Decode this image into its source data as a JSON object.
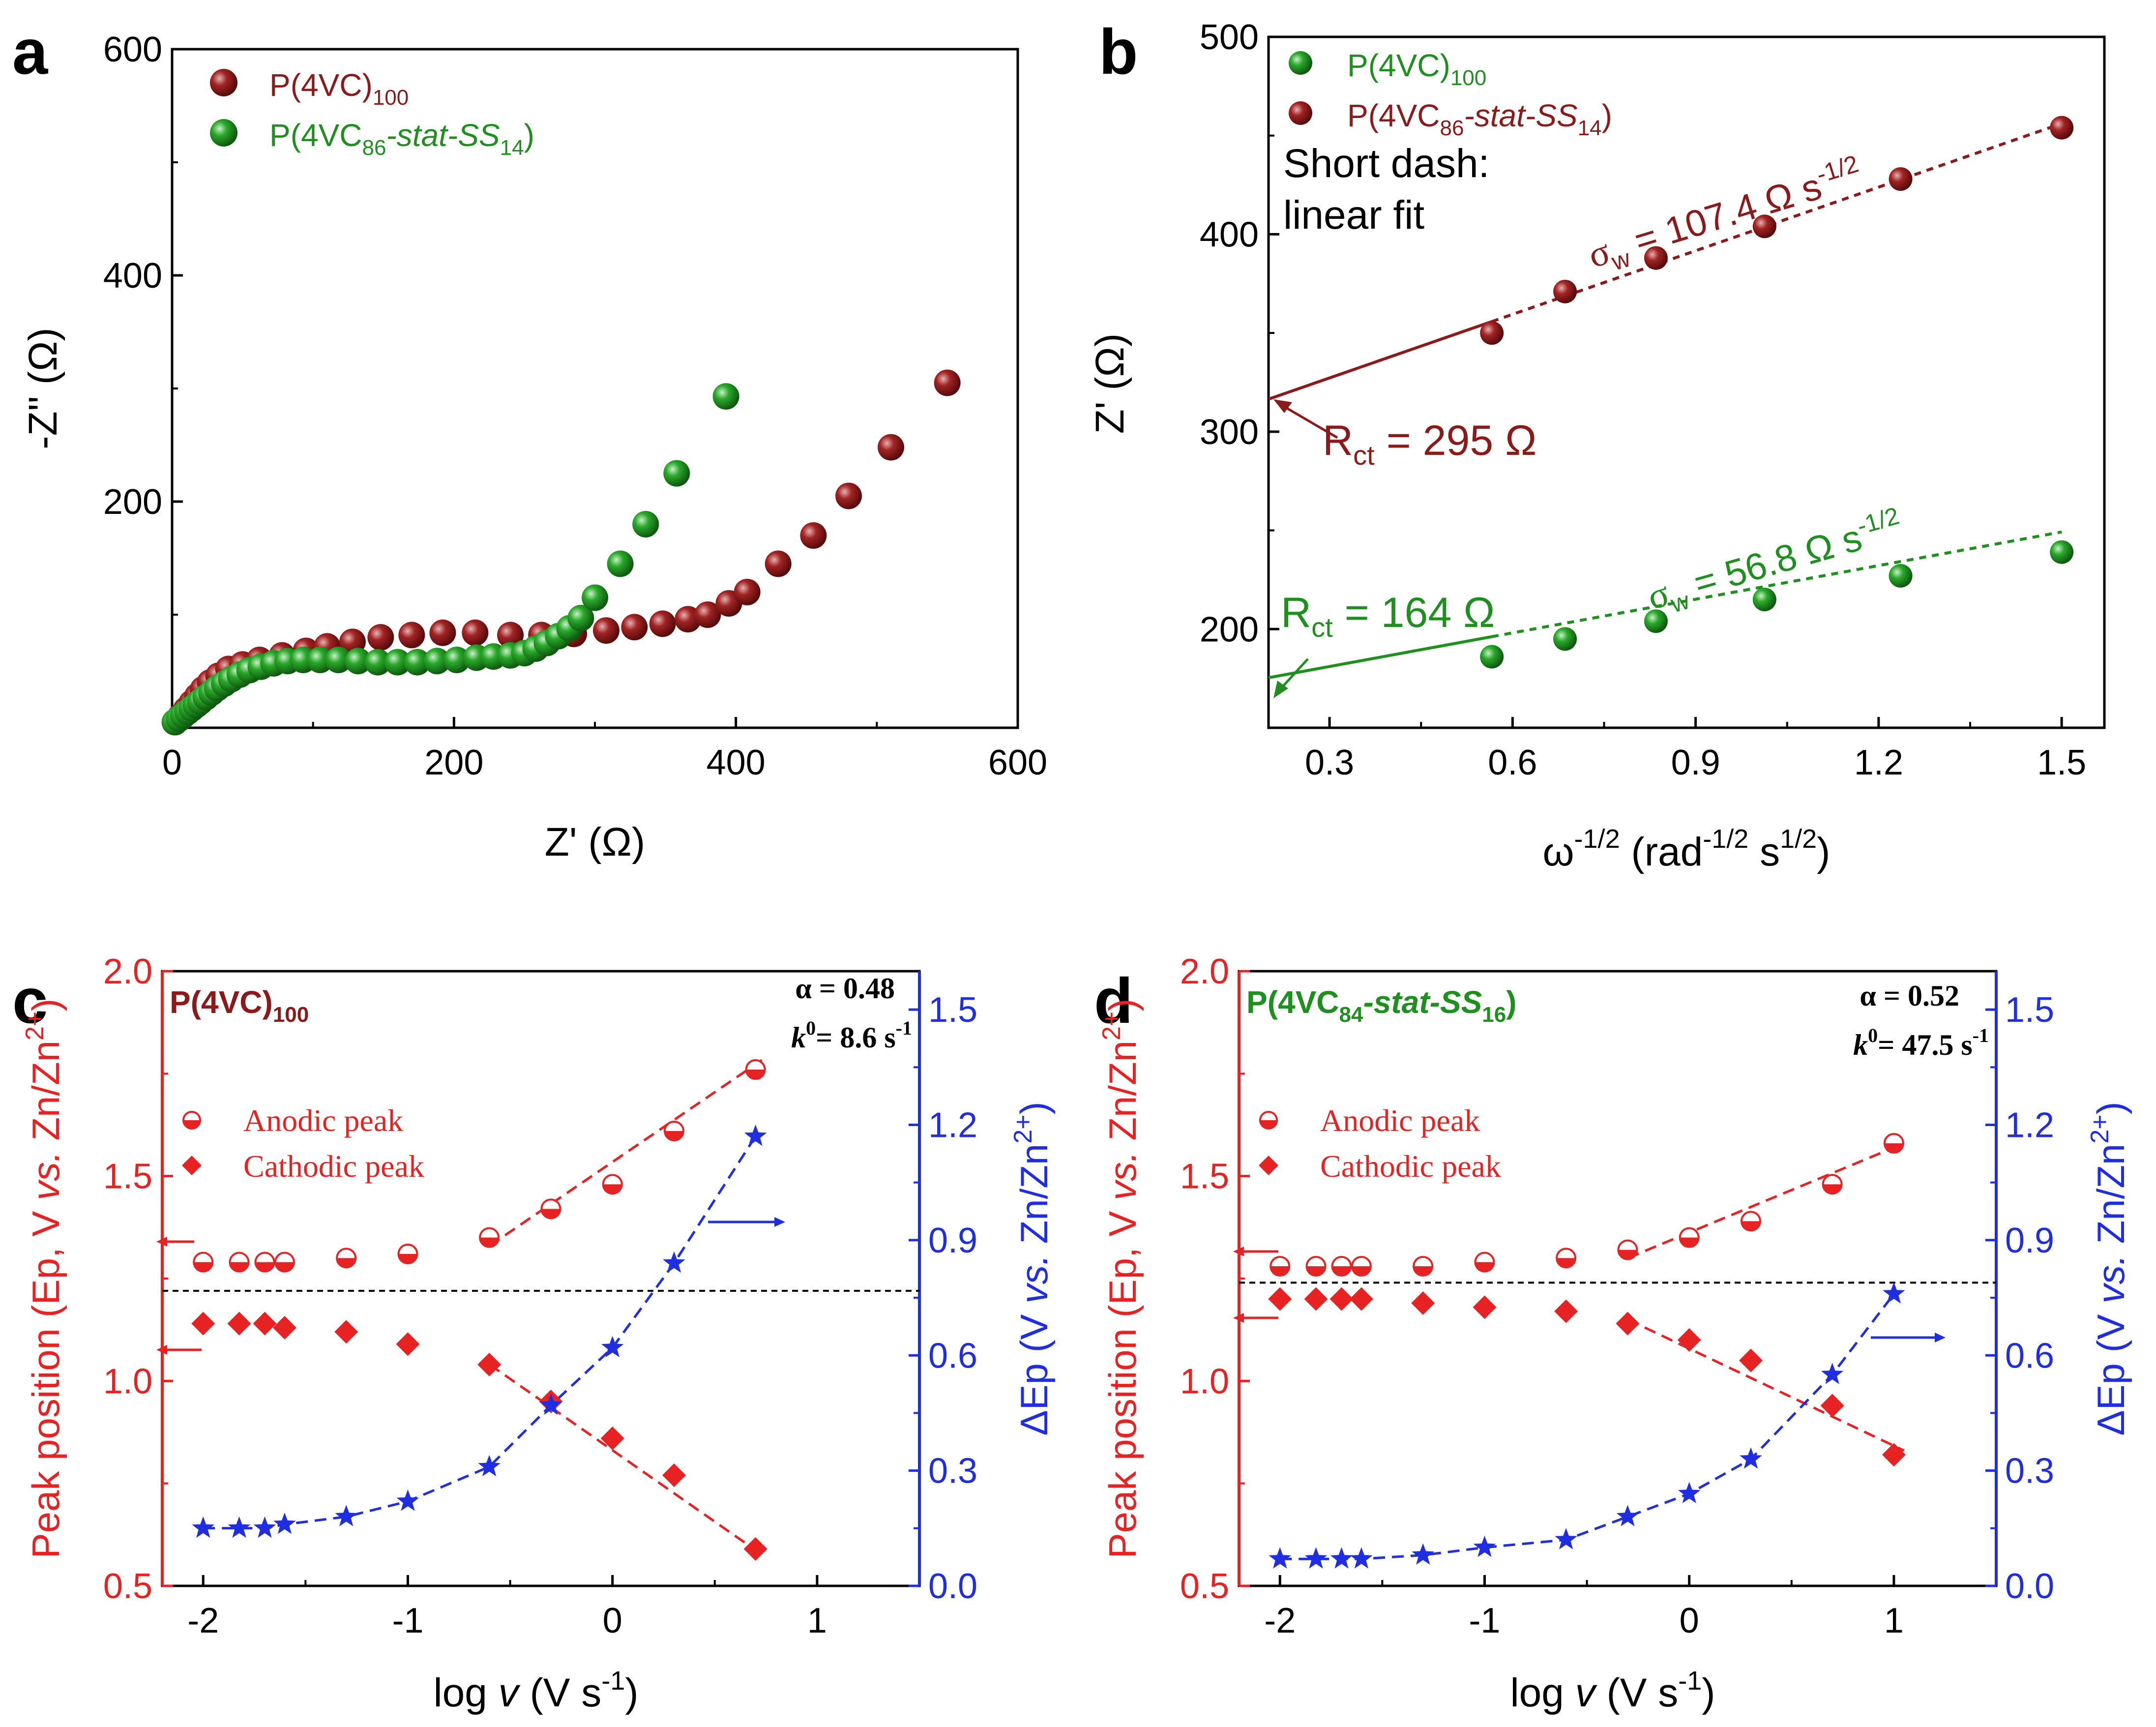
{
  "chart_data": [
    {
      "panel": "a",
      "type": "scatter",
      "title": "",
      "xlabel": "Z' (Ω)",
      "ylabel": "-Z'' (Ω)",
      "xlim": [
        0,
        600
      ],
      "ylim": [
        0,
        600
      ],
      "xticks": [
        0,
        200,
        400,
        600
      ],
      "yticks": [
        200,
        400,
        600
      ],
      "legend_position": "top-left",
      "series": [
        {
          "name": "P(4VC)100",
          "legend": {
            "pre": "P(4VC)",
            "sub": "100"
          },
          "color": "#8b1a1a",
          "x": [
            2,
            6,
            10,
            14,
            18,
            22,
            27,
            33,
            40,
            50,
            62,
            78,
            95,
            110,
            128,
            148,
            170,
            192,
            215,
            240,
            262,
            285,
            308,
            328,
            348,
            366,
            380,
            395,
            408,
            430,
            455,
            480,
            510,
            550
          ],
          "y": [
            5,
            10,
            16,
            22,
            28,
            34,
            40,
            46,
            52,
            56,
            60,
            64,
            68,
            72,
            76,
            80,
            82,
            84,
            84,
            82,
            82,
            83,
            86,
            89,
            92,
            96,
            100,
            110,
            120,
            145,
            170,
            205,
            248,
            305
          ]
        },
        {
          "name": "P(4VC86-stat-SS14)",
          "legend": {
            "pre": "P(4VC",
            "sub1": "86",
            "mid": "-stat-SS",
            "sub2": "14",
            "post": ")"
          },
          "color": "#1f8f1f",
          "x": [
            2,
            5,
            8,
            11,
            14,
            17,
            20,
            24,
            28,
            32,
            37,
            42,
            48,
            55,
            63,
            72,
            82,
            93,
            105,
            118,
            132,
            146,
            160,
            174,
            188,
            202,
            216,
            228,
            240,
            250,
            258,
            266,
            274,
            282,
            290,
            300,
            318,
            336,
            358,
            393
          ],
          "y": [
            5,
            8,
            11,
            14,
            17,
            20,
            23,
            27,
            31,
            35,
            39,
            43,
            47,
            51,
            54,
            57,
            59,
            60,
            60,
            60,
            59,
            58,
            58,
            58,
            59,
            60,
            62,
            63,
            64,
            66,
            70,
            75,
            81,
            88,
            97,
            115,
            145,
            180,
            225,
            293
          ]
        }
      ]
    },
    {
      "panel": "b",
      "type": "scatter",
      "title": "",
      "xlabel": "ω^-1/2 (rad^-1/2 s^1/2)",
      "ylabel": "Z' (Ω)",
      "xlim": [
        0.2,
        1.57
      ],
      "ylim": [
        150,
        500
      ],
      "xticks": [
        0.3,
        0.6,
        0.9,
        1.2,
        1.5
      ],
      "yticks": [
        200,
        300,
        400,
        500
      ],
      "legend_position": "top-left",
      "note_lines": [
        "Short dash:",
        "linear fit"
      ],
      "series": [
        {
          "name": "P(4VC)100",
          "legend": {
            "pre": "P(4VC)",
            "sub": "100"
          },
          "color": "#1f8f1f",
          "x": [
            0.566,
            0.686,
            0.835,
            1.013,
            1.236,
            1.5
          ],
          "y": [
            186,
            195,
            204,
            215,
            227,
            239
          ],
          "fit": {
            "slope": 56.8,
            "intercept": 164
          },
          "sigma_label": {
            "sym": "σ",
            "sub": "w",
            "text": " = 56.8 Ω s",
            "sup": "-1/2"
          },
          "rct_label": {
            "pre": "R",
            "sub": "ct",
            "post": " = 164 Ω"
          }
        },
        {
          "name": "P(4VC86-stat-SS14)",
          "legend": {
            "pre": "P(4VC",
            "sub1": "86",
            "mid": "-stat-SS",
            "sub2": "14",
            "post": ")"
          },
          "color": "#8b1a1a",
          "x": [
            0.566,
            0.686,
            0.835,
            1.013,
            1.236,
            1.5
          ],
          "y": [
            350,
            371,
            388,
            404,
            428,
            454
          ],
          "fit": {
            "slope": 107.4,
            "intercept": 295
          },
          "sigma_label": {
            "sym": "σ",
            "sub": "w",
            "text": " = 107.4 Ω s",
            "sup": "-1/2"
          },
          "rct_label": {
            "pre": "R",
            "sub": "ct",
            "post": " = 295 Ω"
          }
        }
      ]
    },
    {
      "panel": "c",
      "type": "scatter",
      "title": "P(4VC)100",
      "title_parts": {
        "pre": "P(4VC)",
        "sub": "100"
      },
      "alpha_label": "α = 0.48",
      "k0_label": {
        "k": "k",
        "sup": "0",
        "value": "= 8.6 s",
        "unit_sup": "-1"
      },
      "xlabel": "log v (V s-1)",
      "ylabel_left": "Peak position (Ep, V vs. Zn/Zn2+)",
      "ylabel_right": "ΔEp (V vs. Zn/Zn2+)",
      "xlim": [
        -2.2,
        1.5
      ],
      "ylim_left": [
        0.5,
        2.0
      ],
      "ylim_right": [
        0.0,
        1.6
      ],
      "xticks": [
        -2,
        -1,
        0,
        1
      ],
      "yticks_left": [
        0.5,
        1.0,
        1.5,
        2.0
      ],
      "yticks_right": [
        0.0,
        0.3,
        0.6,
        0.9,
        1.2,
        1.5
      ],
      "reference_line_y": 1.22,
      "legend_position": "upper-left",
      "series": [
        {
          "name": "Anodic peak",
          "axis": "left",
          "color": "#e62222",
          "x": [
            -2,
            -1.824,
            -1.699,
            -1.602,
            -1.301,
            -1,
            -0.602,
            -0.301,
            0,
            0.301,
            0.699
          ],
          "y": [
            1.29,
            1.29,
            1.29,
            1.29,
            1.3,
            1.31,
            1.35,
            1.42,
            1.48,
            1.61,
            1.76
          ],
          "fit": {
            "x": [
              -0.6,
              0.75
            ],
            "y": [
              1.33,
              1.79
            ]
          }
        },
        {
          "name": "Cathodic peak",
          "axis": "left",
          "color": "#e62222",
          "x": [
            -2,
            -1.824,
            -1.699,
            -1.602,
            -1.301,
            -1,
            -0.602,
            -0.301,
            0,
            0.301,
            0.699
          ],
          "y": [
            1.14,
            1.14,
            1.14,
            1.13,
            1.12,
            1.09,
            1.04,
            0.95,
            0.86,
            0.77,
            0.59
          ],
          "fit": {
            "x": [
              -0.6,
              0.72
            ],
            "y": [
              1.04,
              0.58
            ]
          }
        },
        {
          "name": "ΔEp",
          "axis": "right",
          "color": "#1f2ee0",
          "x": [
            -2,
            -1.824,
            -1.699,
            -1.602,
            -1.301,
            -1,
            -0.602,
            -0.301,
            0,
            0.301,
            0.699
          ],
          "y": [
            0.15,
            0.15,
            0.15,
            0.16,
            0.18,
            0.22,
            0.31,
            0.47,
            0.62,
            0.84,
            1.17
          ]
        }
      ]
    },
    {
      "panel": "d",
      "type": "scatter",
      "title": "P(4VC84-stat-SS16)",
      "title_parts": {
        "pre": "P(4VC",
        "sub1": "84",
        "mid": "-stat-SS",
        "sub2": "16",
        "post": ")"
      },
      "alpha_label": "α = 0.52",
      "k0_label": {
        "k": "k",
        "sup": "0",
        "value": "= 47.5 s",
        "unit_sup": "-1"
      },
      "xlabel": "log v (V s-1)",
      "ylabel_left": "Peak position (Ep, V vs. Zn/Zn2+)",
      "ylabel_right": "ΔEp (V vs. Zn/Zn2+)",
      "xlim": [
        -2.2,
        1.5
      ],
      "ylim_left": [
        0.5,
        2.0
      ],
      "ylim_right": [
        0.0,
        1.6
      ],
      "xticks": [
        -2,
        -1,
        0,
        1
      ],
      "yticks_left": [
        0.5,
        1.0,
        1.5,
        2.0
      ],
      "yticks_right": [
        0.0,
        0.3,
        0.6,
        0.9,
        1.2,
        1.5
      ],
      "reference_line_y": 1.24,
      "legend_position": "upper-left",
      "series": [
        {
          "name": "Anodic peak",
          "axis": "left",
          "color": "#e62222",
          "x": [
            -2,
            -1.824,
            -1.699,
            -1.602,
            -1.301,
            -1,
            -0.602,
            -0.301,
            0,
            0.301,
            0.699,
            1
          ],
          "y": [
            1.28,
            1.28,
            1.28,
            1.28,
            1.28,
            1.29,
            1.3,
            1.32,
            1.35,
            1.39,
            1.48,
            1.58
          ],
          "fit": {
            "x": [
              -0.3,
              1.05
            ],
            "y": [
              1.3,
              1.58
            ]
          }
        },
        {
          "name": "Cathodic peak",
          "axis": "left",
          "color": "#e62222",
          "x": [
            -2,
            -1.824,
            -1.699,
            -1.602,
            -1.301,
            -1,
            -0.602,
            -0.301,
            0,
            0.301,
            0.699,
            1
          ],
          "y": [
            1.2,
            1.2,
            1.2,
            1.2,
            1.19,
            1.18,
            1.17,
            1.14,
            1.1,
            1.05,
            0.94,
            0.82
          ],
          "fit": {
            "x": [
              -0.3,
              1.05
            ],
            "y": [
              1.15,
              0.83
            ]
          }
        },
        {
          "name": "ΔEp",
          "axis": "right",
          "color": "#1f2ee0",
          "x": [
            -2,
            -1.824,
            -1.699,
            -1.602,
            -1.301,
            -1,
            -0.602,
            -0.301,
            0,
            0.301,
            0.699,
            1
          ],
          "y": [
            0.07,
            0.07,
            0.07,
            0.07,
            0.08,
            0.1,
            0.12,
            0.18,
            0.24,
            0.33,
            0.55,
            0.76
          ]
        }
      ]
    }
  ],
  "panel_letters": [
    "a",
    "b",
    "c",
    "d"
  ],
  "legend_labels": {
    "anodic": "Anodic peak",
    "cathodic": "Cathodic peak"
  },
  "axis_text": {
    "a_x": "Z' (Ω)",
    "a_y": "-Z'' (Ω)",
    "b_y": "Z' (Ω)",
    "b_x": {
      "pre": "ω",
      "sup1": "-1/2",
      "mid": " (rad",
      "sup2": "-1/2",
      "mid2": " s",
      "sup3": "1/2",
      "post": ")"
    },
    "cd_x": {
      "pre": "log ",
      "v": "v",
      "mid": " (V s",
      "sup": "-1",
      "post": ")"
    },
    "cd_yl": {
      "pre": "Peak position (Ep, V ",
      "vs": "vs.",
      "mid": " Zn/Zn",
      "sup": "2+",
      "post": ")"
    },
    "cd_yr": {
      "pre": "ΔEp (V ",
      "vs": "vs.",
      "mid": " Zn/Zn",
      "sup": "2+",
      "post": ")"
    }
  },
  "colors": {
    "maroon": "#8b1a1a",
    "green": "#1f8f1f",
    "red": "#e62222",
    "blue": "#1f2ee0",
    "black": "#000000"
  }
}
